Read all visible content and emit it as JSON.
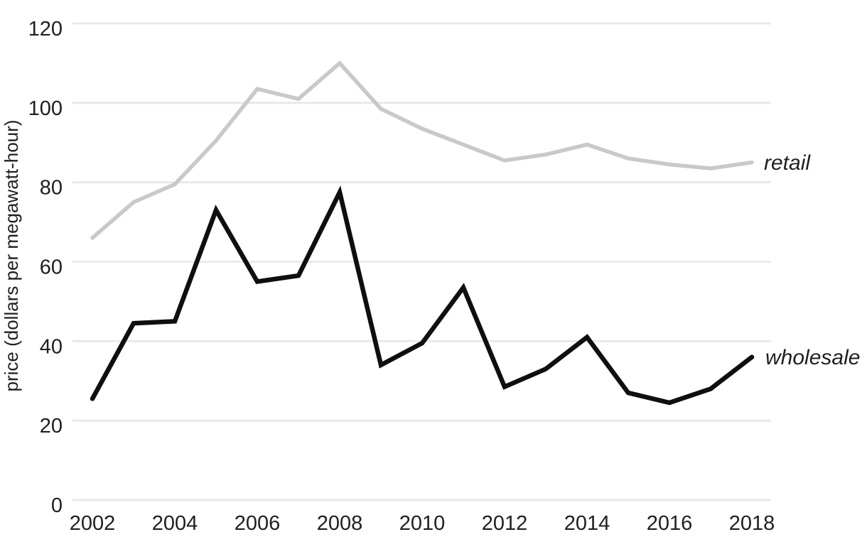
{
  "chart_data": {
    "type": "line",
    "title": "",
    "ylabel": "price (dollars per megawatt-hour)",
    "xlabel": "",
    "ylim": [
      0,
      120
    ],
    "yticks": [
      0,
      20,
      40,
      60,
      80,
      100,
      120
    ],
    "xticks": [
      2002,
      2004,
      2006,
      2008,
      2010,
      2012,
      2014,
      2016,
      2018
    ],
    "x": [
      2002,
      2003,
      2004,
      2005,
      2006,
      2007,
      2008,
      2009,
      2010,
      2011,
      2012,
      2013,
      2014,
      2015,
      2016,
      2017,
      2018
    ],
    "series": [
      {
        "name": "retail",
        "color": "#c9c9c9",
        "line_width": 5.5,
        "values": [
          66,
          75,
          79.5,
          90.5,
          103.5,
          101,
          110,
          98.5,
          93.5,
          89.5,
          85.5,
          87,
          89.5,
          86,
          84.5,
          83.5,
          85
        ]
      },
      {
        "name": "wholesale",
        "color": "#0f0f0f",
        "line_width": 6.5,
        "values": [
          25.5,
          44.5,
          45,
          73,
          55,
          56.5,
          77.5,
          34,
          39.5,
          53.5,
          28.5,
          33,
          41,
          27,
          24.5,
          28,
          36
        ]
      }
    ],
    "grid": true,
    "gridline_color": "#e8e8e8",
    "text_color": "#1f1f1f",
    "legend_position": "end-of-line-labels-right"
  }
}
